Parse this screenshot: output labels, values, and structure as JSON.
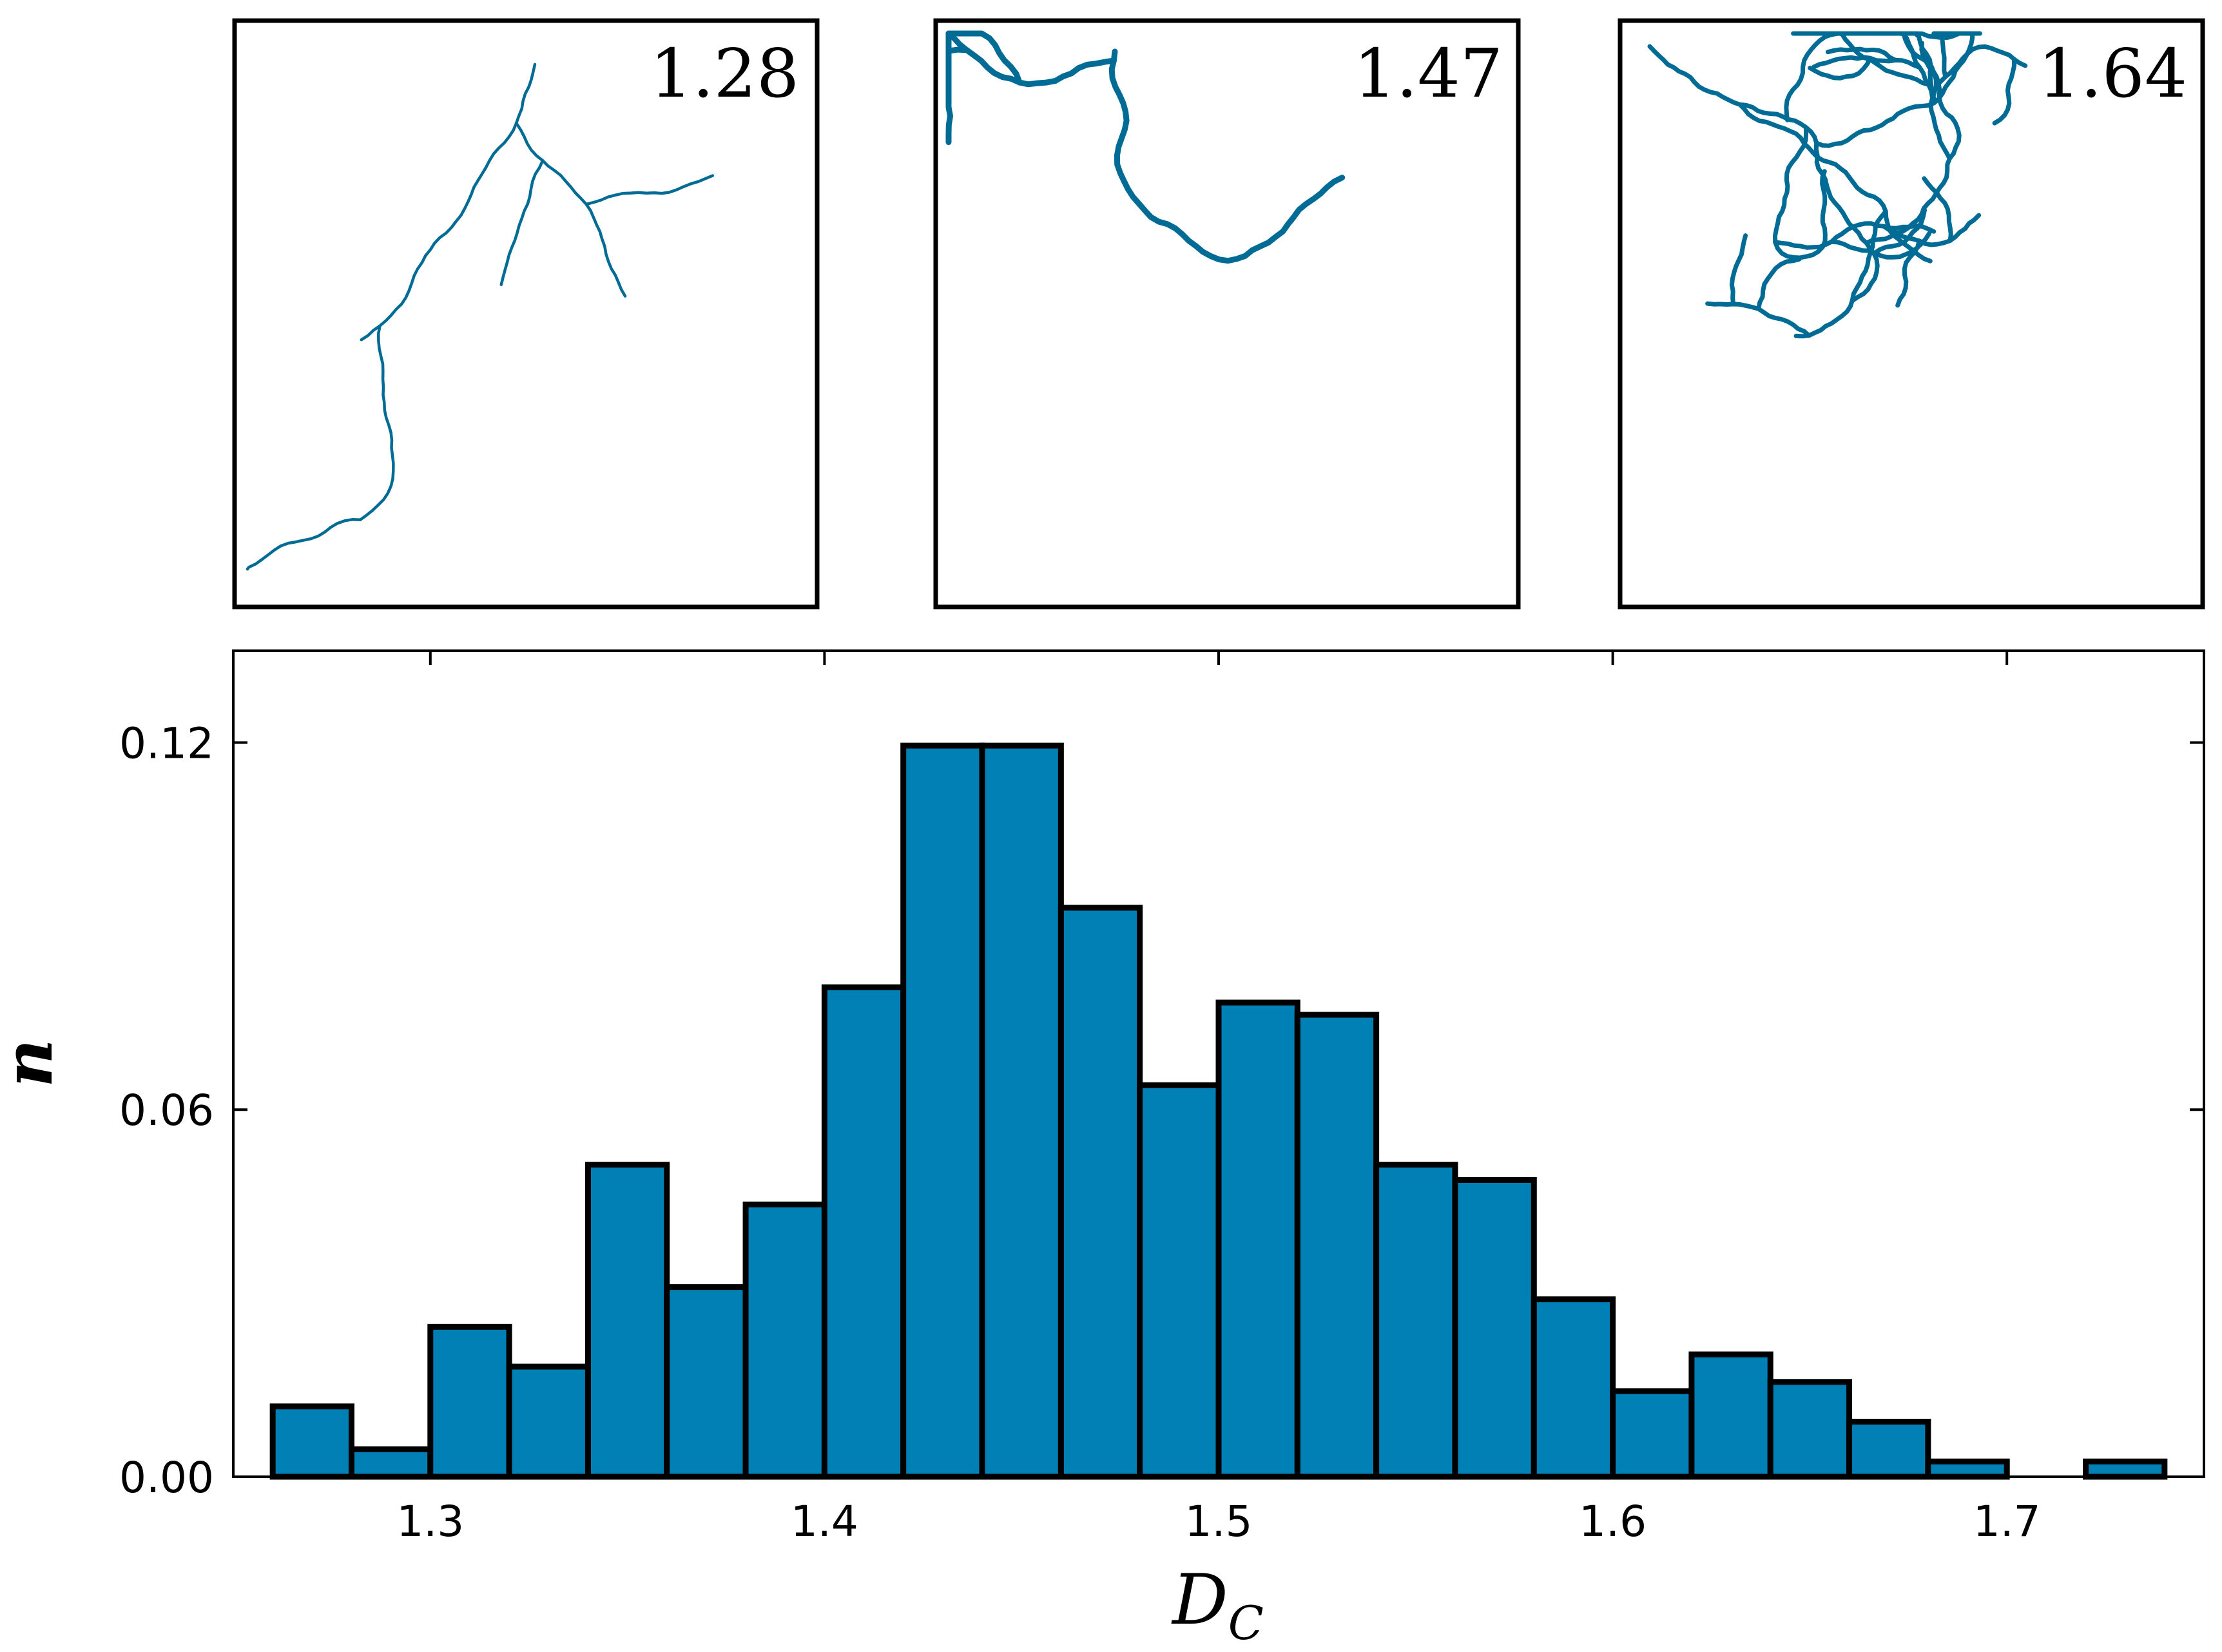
{
  "colors": {
    "bar_fill": "#0080b4",
    "bar_edge": "#000000",
    "branch": "#006b94",
    "axis": "#000000",
    "background": "#ffffff"
  },
  "panels": [
    {
      "value_label": "1.28"
    },
    {
      "value_label": "1.47"
    },
    {
      "value_label": "1.64"
    }
  ],
  "chart_data": {
    "type": "bar",
    "title": "",
    "xlabel": "D",
    "xlabel_subscript": "C",
    "ylabel": "n",
    "xlim": [
      1.25,
      1.75
    ],
    "ylim": [
      0,
      0.135
    ],
    "bin_width": 0.02,
    "bin_starts": [
      1.26,
      1.28,
      1.3,
      1.32,
      1.34,
      1.36,
      1.38,
      1.4,
      1.42,
      1.44,
      1.46,
      1.48,
      1.5,
      1.52,
      1.54,
      1.56,
      1.58,
      1.6,
      1.62,
      1.64,
      1.66,
      1.68,
      1.7,
      1.72
    ],
    "values": [
      0.0115,
      0.0045,
      0.0245,
      0.018,
      0.051,
      0.031,
      0.0445,
      0.08,
      0.1195,
      0.1195,
      0.093,
      0.064,
      0.0775,
      0.0755,
      0.051,
      0.0485,
      0.029,
      0.014,
      0.02,
      0.0155,
      0.009,
      0.0025,
      0.0,
      0.0025
    ],
    "x_ticks": [
      "1.3",
      "1.4",
      "1.5",
      "1.6",
      "1.7"
    ],
    "x_tick_values": [
      1.3,
      1.4,
      1.5,
      1.6,
      1.7
    ],
    "y_ticks": [
      "0.00",
      "0.06",
      "0.12"
    ],
    "y_tick_values": [
      0.0,
      0.06,
      0.12
    ],
    "grid": false,
    "legend": "none"
  }
}
